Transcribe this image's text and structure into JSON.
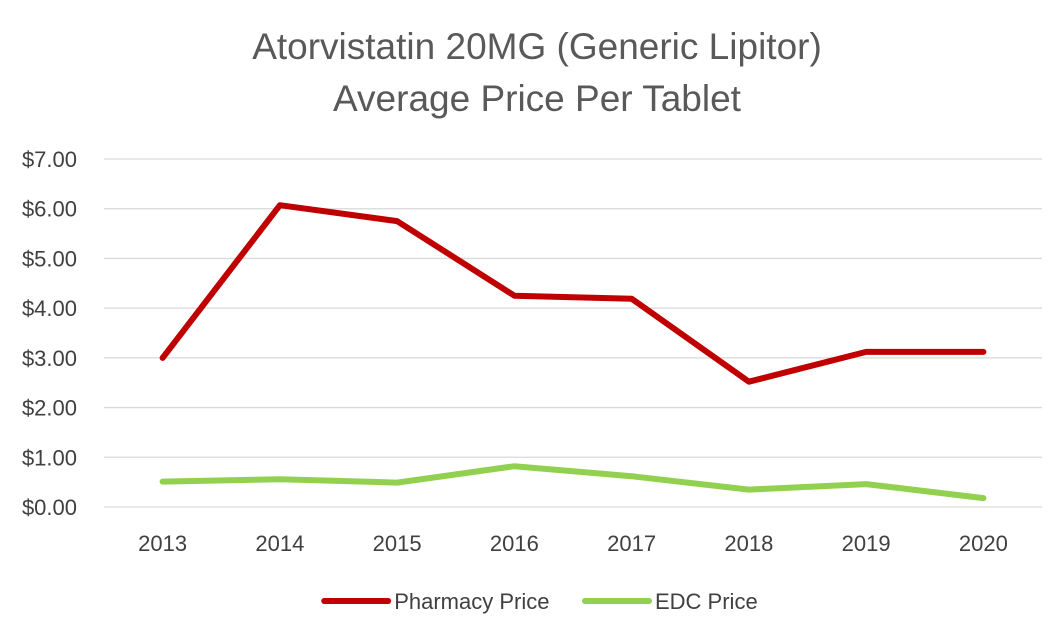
{
  "chart_data": {
    "type": "line",
    "title": [
      "Atorvistatin 20MG (Generic Lipitor)",
      "Average Price Per Tablet"
    ],
    "xlabel": "",
    "ylabel": "",
    "categories": [
      "2013",
      "2014",
      "2015",
      "2016",
      "2017",
      "2018",
      "2019",
      "2020"
    ],
    "y_ticks": [
      "$0.00",
      "$1.00",
      "$2.00",
      "$3.00",
      "$4.00",
      "$5.00",
      "$6.00",
      "$7.00"
    ],
    "ylim": [
      0,
      7
    ],
    "grid": true,
    "legend_position": "bottom",
    "series": [
      {
        "name": "Pharmacy Price",
        "color": "#c00000",
        "values": [
          3.0,
          6.07,
          5.75,
          4.25,
          4.19,
          2.52,
          3.12,
          3.12
        ]
      },
      {
        "name": "EDC Price",
        "color": "#92d050",
        "values": [
          0.51,
          0.56,
          0.49,
          0.82,
          0.62,
          0.35,
          0.46,
          0.18
        ]
      }
    ]
  }
}
